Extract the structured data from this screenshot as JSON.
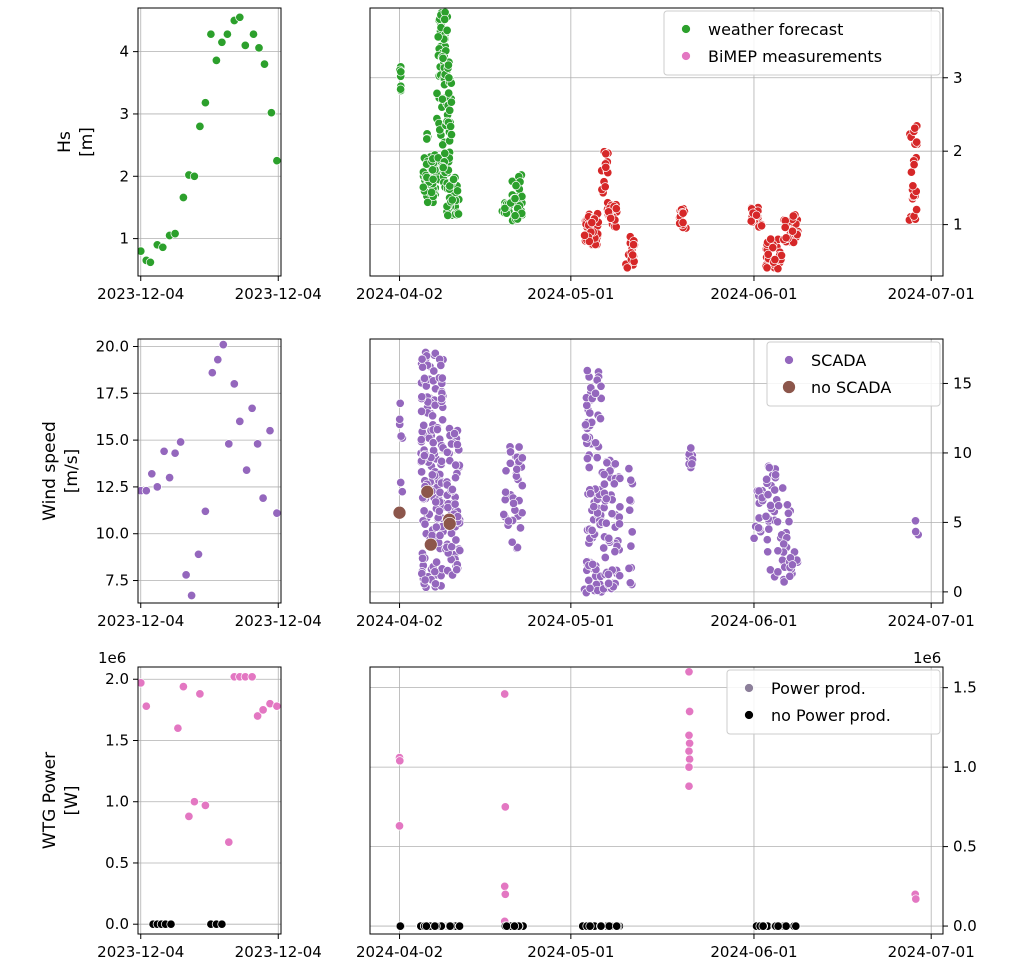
{
  "chart_data": [
    {
      "id": "hs-left",
      "type": "scatter",
      "xlabel": "",
      "ylabel": [
        "Hs",
        "[m]"
      ],
      "x_ticks": [
        {
          "value": 0,
          "label": "2023-12-04"
        },
        {
          "value": 1,
          "label": "2023-12-04"
        }
      ],
      "xlim": [
        -0.02,
        1.02
      ],
      "ylim": [
        0.4,
        4.7
      ],
      "y_ticks": [
        1,
        2,
        3,
        4
      ],
      "grid": true,
      "series": [
        {
          "color": "#2ca02c",
          "points": [
            [
              0.0,
              0.8
            ],
            [
              0.04,
              0.65
            ],
            [
              0.07,
              0.62
            ],
            [
              0.12,
              0.9
            ],
            [
              0.16,
              0.86
            ],
            [
              0.21,
              1.05
            ],
            [
              0.25,
              1.08
            ],
            [
              0.31,
              1.66
            ],
            [
              0.35,
              2.02
            ],
            [
              0.39,
              2.0
            ],
            [
              0.43,
              2.8
            ],
            [
              0.47,
              3.18
            ],
            [
              0.51,
              4.28
            ],
            [
              0.55,
              3.86
            ],
            [
              0.59,
              4.15
            ],
            [
              0.63,
              4.28
            ],
            [
              0.68,
              4.5
            ],
            [
              0.72,
              4.55
            ],
            [
              0.76,
              4.1
            ],
            [
              0.82,
              4.28
            ],
            [
              0.86,
              4.06
            ],
            [
              0.9,
              3.8
            ],
            [
              0.95,
              3.02
            ],
            [
              0.99,
              2.25
            ]
          ]
        }
      ]
    },
    {
      "id": "hs-right",
      "type": "scatter",
      "xlabel": "",
      "ylabel": "",
      "x_ticks": [
        {
          "value": 0,
          "label": "2024-04-02"
        },
        {
          "value": 29,
          "label": "2024-05-01"
        },
        {
          "value": 60,
          "label": "2024-06-01"
        },
        {
          "value": 90,
          "label": "2024-07-01"
        }
      ],
      "xlim": [
        -5,
        92
      ],
      "ylim": [
        0.3,
        3.95
      ],
      "y_ticks": [
        1,
        2,
        3
      ],
      "y_axis_side": "right",
      "grid": true,
      "legend_position": "top-right",
      "series": [
        {
          "name": "weather forecast",
          "color": "#2ca02c",
          "legend_color": "#2ca02c",
          "clusters": [
            {
              "x": [
                0.0,
                0.3
              ],
              "y": [
                2.75,
                3.15
              ],
              "n": 8
            },
            {
              "x": [
                4.0,
                6.5
              ],
              "y": [
                1.3,
                1.95
              ],
              "n": 60
            },
            {
              "x": [
                4.5,
                5.0
              ],
              "y": [
                2.1,
                2.3
              ],
              "n": 4
            },
            {
              "x": [
                6.2,
                7.2
              ],
              "y": [
                1.9,
                2.9
              ],
              "n": 8
            },
            {
              "x": [
                6.5,
                8.2
              ],
              "y": [
                2.9,
                3.9
              ],
              "n": 40
            },
            {
              "x": [
                7.2,
                8.8
              ],
              "y": [
                1.5,
                3.3
              ],
              "n": 50
            },
            {
              "x": [
                8.0,
                10.2
              ],
              "y": [
                1.1,
                1.65
              ],
              "n": 30
            },
            {
              "x": [
                17.3,
                18.8
              ],
              "y": [
                1.15,
                1.3
              ],
              "n": 12
            },
            {
              "x": [
                18.8,
                20.8
              ],
              "y": [
                1.05,
                1.7
              ],
              "n": 35
            }
          ]
        },
        {
          "name": "BiMEP measurements",
          "color": "#d62728",
          "legend_color": "#e377c2",
          "clusters": [
            {
              "x": [
                31.3,
                33.8
              ],
              "y": [
                0.72,
                1.15
              ],
              "n": 45
            },
            {
              "x": [
                34.0,
                35.3
              ],
              "y": [
                1.2,
                2.0
              ],
              "n": 15
            },
            {
              "x": [
                35.2,
                36.8
              ],
              "y": [
                0.95,
                1.3
              ],
              "n": 20
            },
            {
              "x": [
                38.2,
                39.8
              ],
              "y": [
                0.4,
                0.85
              ],
              "n": 20
            },
            {
              "x": [
                47.4,
                48.6
              ],
              "y": [
                0.95,
                1.25
              ],
              "n": 14
            },
            {
              "x": [
                59.5,
                61.5
              ],
              "y": [
                0.95,
                1.25
              ],
              "n": 18
            },
            {
              "x": [
                62.0,
                64.8
              ],
              "y": [
                0.4,
                0.85
              ],
              "n": 30
            },
            {
              "x": [
                65.0,
                67.5
              ],
              "y": [
                0.75,
                1.15
              ],
              "n": 30
            },
            {
              "x": [
                86.3,
                87.6
              ],
              "y": [
                1.0,
                2.4
              ],
              "n": 25
            }
          ]
        }
      ]
    },
    {
      "id": "ws-left",
      "type": "scatter",
      "xlabel": "",
      "ylabel": [
        "Wind speed",
        "[m/s]"
      ],
      "x_ticks": [
        {
          "value": 0,
          "label": "2023-12-04"
        },
        {
          "value": 1,
          "label": "2023-12-04"
        }
      ],
      "xlim": [
        -0.02,
        1.02
      ],
      "ylim": [
        6.3,
        20.4
      ],
      "y_ticks": [
        7.5,
        10.0,
        12.5,
        15.0,
        17.5,
        20.0
      ],
      "y_tick_labels": [
        "7.5",
        "10.0",
        "12.5",
        "15.0",
        "17.5",
        "20.0"
      ],
      "grid": true,
      "series": [
        {
          "color": "#9467bd",
          "points": [
            [
              0.0,
              12.3
            ],
            [
              0.04,
              12.3
            ],
            [
              0.08,
              13.2
            ],
            [
              0.12,
              12.5
            ],
            [
              0.17,
              14.4
            ],
            [
              0.21,
              13.0
            ],
            [
              0.25,
              14.3
            ],
            [
              0.29,
              14.9
            ],
            [
              0.33,
              7.8
            ],
            [
              0.37,
              6.7
            ],
            [
              0.42,
              8.9
            ],
            [
              0.47,
              11.2
            ],
            [
              0.52,
              18.6
            ],
            [
              0.56,
              19.3
            ],
            [
              0.6,
              20.1
            ],
            [
              0.64,
              14.8
            ],
            [
              0.68,
              18.0
            ],
            [
              0.72,
              16.0
            ],
            [
              0.77,
              13.4
            ],
            [
              0.81,
              16.7
            ],
            [
              0.85,
              14.8
            ],
            [
              0.89,
              11.9
            ],
            [
              0.94,
              15.5
            ],
            [
              0.99,
              11.1
            ]
          ]
        }
      ]
    },
    {
      "id": "ws-right",
      "type": "scatter",
      "xlabel": "",
      "ylabel": "",
      "x_ticks": [
        {
          "value": 0,
          "label": "2024-04-02"
        },
        {
          "value": 29,
          "label": "2024-05-01"
        },
        {
          "value": 60,
          "label": "2024-06-01"
        },
        {
          "value": 90,
          "label": "2024-07-01"
        }
      ],
      "xlim": [
        -5,
        92
      ],
      "ylim": [
        -0.8,
        18.2
      ],
      "y_ticks": [
        0,
        5,
        10,
        15
      ],
      "y_axis_side": "right",
      "grid": true,
      "legend_position": "top-right",
      "series": [
        {
          "name": "SCADA",
          "color": "#9467bd",
          "legend_color": "#9467bd",
          "clusters": [
            {
              "x": [
                0.0,
                0.5
              ],
              "y": [
                6.5,
                13.8
              ],
              "n": 8
            },
            {
              "x": [
                3.6,
                7.5
              ],
              "y": [
                0.3,
                17.7
              ],
              "n": 160
            },
            {
              "x": [
                7.8,
                10.2
              ],
              "y": [
                1.2,
                11.8
              ],
              "n": 60
            },
            {
              "x": [
                17.6,
                20.8
              ],
              "y": [
                3.0,
                11.2
              ],
              "n": 35
            },
            {
              "x": [
                31.3,
                34.2
              ],
              "y": [
                -0.1,
                16.0
              ],
              "n": 90
            },
            {
              "x": [
                34.2,
                37.4
              ],
              "y": [
                0.2,
                9.8
              ],
              "n": 55
            },
            {
              "x": [
                38.8,
                39.5
              ],
              "y": [
                0.3,
                9.0
              ],
              "n": 12
            },
            {
              "x": [
                49.0,
                50.0
              ],
              "y": [
                8.5,
                10.9
              ],
              "n": 10
            },
            {
              "x": [
                60.0,
                61.5
              ],
              "y": [
                3.5,
                7.5
              ],
              "n": 14
            },
            {
              "x": [
                62.0,
                63.8
              ],
              "y": [
                0.6,
                10.2
              ],
              "n": 25
            },
            {
              "x": [
                63.8,
                66.2
              ],
              "y": [
                0.6,
                7.5
              ],
              "n": 25
            },
            {
              "x": [
                66.0,
                67.5
              ],
              "y": [
                0.7,
                3.0
              ],
              "n": 10
            },
            {
              "x": [
                87.3,
                87.8
              ],
              "y": [
                4.0,
                5.3
              ],
              "n": 5
            }
          ]
        },
        {
          "name": "no SCADA",
          "color": "#8c564b",
          "legend_color": "#8c564b",
          "size": "large",
          "points": [
            [
              0.0,
              5.7
            ],
            [
              4.7,
              7.2
            ],
            [
              5.3,
              3.4
            ],
            [
              8.4,
              5.2
            ],
            [
              8.5,
              4.9
            ]
          ]
        }
      ]
    },
    {
      "id": "pw-left",
      "type": "scatter",
      "xlabel": "",
      "ylabel": [
        "WTG Power",
        "[W]"
      ],
      "x_ticks": [
        {
          "value": 0,
          "label": "2023-12-04"
        },
        {
          "value": 1,
          "label": "2023-12-04"
        }
      ],
      "xlim": [
        -0.02,
        1.02
      ],
      "ylim": [
        -0.08,
        2.1
      ],
      "y_ticks": [
        0.0,
        0.5,
        1.0,
        1.5,
        2.0
      ],
      "y_tick_labels": [
        "0.0",
        "0.5",
        "1.0",
        "1.5",
        "2.0"
      ],
      "scale_label": "1e6",
      "grid": true,
      "series": [
        {
          "color": "#e377c2",
          "points": [
            [
              0.0,
              1.97
            ],
            [
              0.04,
              1.78
            ],
            [
              0.27,
              1.6
            ],
            [
              0.31,
              1.94
            ],
            [
              0.35,
              0.88
            ],
            [
              0.39,
              1.0
            ],
            [
              0.43,
              1.88
            ],
            [
              0.47,
              0.97
            ],
            [
              0.64,
              0.67
            ],
            [
              0.68,
              2.02
            ],
            [
              0.72,
              2.02
            ],
            [
              0.76,
              2.02
            ],
            [
              0.81,
              2.02
            ],
            [
              0.85,
              1.7
            ],
            [
              0.89,
              1.75
            ],
            [
              0.94,
              1.8
            ],
            [
              0.99,
              1.78
            ]
          ]
        },
        {
          "color": "#000000",
          "points": [
            [
              0.09,
              0.0
            ],
            [
              0.12,
              0.0
            ],
            [
              0.15,
              0.0
            ],
            [
              0.18,
              0.0
            ],
            [
              0.22,
              0.0
            ],
            [
              0.51,
              0.0
            ],
            [
              0.55,
              0.0
            ],
            [
              0.59,
              0.0
            ]
          ]
        }
      ]
    },
    {
      "id": "pw-right",
      "type": "scatter",
      "xlabel": "",
      "ylabel": "",
      "x_ticks": [
        {
          "value": 0,
          "label": "2024-04-02"
        },
        {
          "value": 29,
          "label": "2024-05-01"
        },
        {
          "value": 60,
          "label": "2024-06-01"
        },
        {
          "value": 90,
          "label": "2024-07-01"
        }
      ],
      "xlim": [
        -5,
        92
      ],
      "ylim": [
        -0.05,
        1.63
      ],
      "y_ticks": [
        0.0,
        0.5,
        1.0,
        1.5
      ],
      "y_tick_labels": [
        "0.0",
        "0.5",
        "1.0",
        "1.5"
      ],
      "y_axis_side": "right",
      "scale_label": "1e6",
      "grid": true,
      "legend_position": "top-right",
      "series": [
        {
          "name": "Power prod.",
          "color": "#e377c2",
          "legend_color": "#8c7f9a",
          "points": [
            [
              0.0,
              1.06
            ],
            [
              0.05,
              1.04
            ],
            [
              0.0,
              0.63
            ],
            [
              17.8,
              1.46
            ],
            [
              17.9,
              0.75
            ],
            [
              17.8,
              0.25
            ],
            [
              17.9,
              0.2
            ],
            [
              17.8,
              0.03
            ],
            [
              49.0,
              1.6
            ],
            [
              49.1,
              1.35
            ],
            [
              49.0,
              1.2
            ],
            [
              49.1,
              1.15
            ],
            [
              49.0,
              1.1
            ],
            [
              49.1,
              1.05
            ],
            [
              49.0,
              1.0
            ],
            [
              49.0,
              0.88
            ],
            [
              87.3,
              0.2
            ],
            [
              87.4,
              0.17
            ]
          ]
        },
        {
          "name": "no Power prod.",
          "color": "#000000",
          "legend_color": "#000000",
          "clusters": [
            {
              "x": [
                0.0,
                0.4
              ],
              "y": [
                0.0,
                0.0
              ],
              "n": 3
            },
            {
              "x": [
                3.5,
                10.3
              ],
              "y": [
                0.0,
                0.0
              ],
              "n": 40
            },
            {
              "x": [
                17.6,
                21.0
              ],
              "y": [
                0.0,
                0.0
              ],
              "n": 14
            },
            {
              "x": [
                31.0,
                38.8
              ],
              "y": [
                0.0,
                0.0
              ],
              "n": 24
            },
            {
              "x": [
                60.0,
                67.2
              ],
              "y": [
                0.0,
                0.0
              ],
              "n": 16
            }
          ]
        }
      ]
    }
  ]
}
